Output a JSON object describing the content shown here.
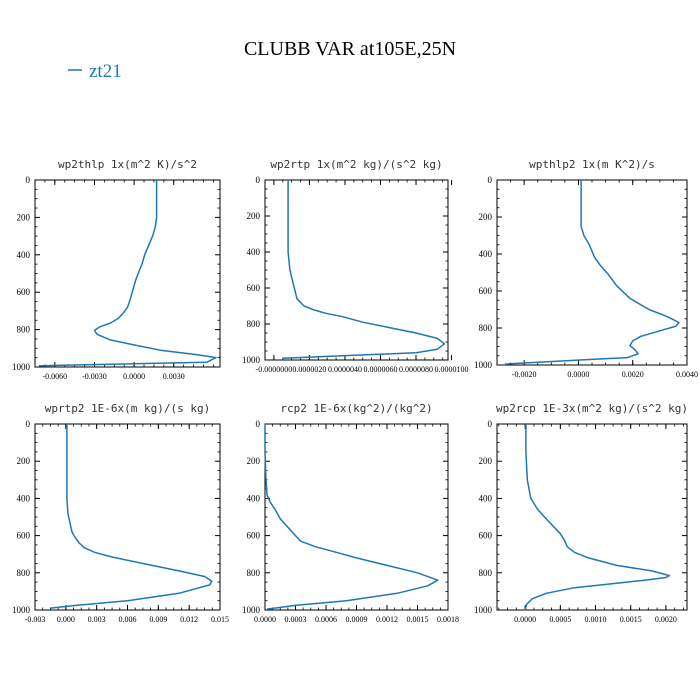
{
  "figure": {
    "title": "CLUBB VAR at105E,25N",
    "legend": {
      "label": "zt21",
      "color": "#1f77b4",
      "position": "top-left"
    }
  },
  "style": {
    "line_color": "#1f77b4",
    "axis_color": "#000000"
  },
  "chart_data": [
    {
      "type": "line",
      "title": "wp2thlp  1x(m^2 K)/s^2",
      "series": [
        {
          "name": "zt21",
          "x": [
            -0.0072,
            0.0055,
            0.0062,
            0.0048,
            0.002,
            0.0002,
            -0.0018,
            -0.0028,
            -0.003,
            -0.0026,
            -0.0018,
            -0.0012,
            -0.0008,
            -0.0005,
            -0.0003,
            -0.0001,
            0.0001,
            0.0003,
            0.0006,
            0.0008,
            0.0011,
            0.0014,
            0.0016,
            0.0017,
            0.0017,
            0.0017
          ],
          "y": [
            993,
            975,
            950,
            935,
            910,
            885,
            855,
            825,
            805,
            785,
            765,
            740,
            710,
            680,
            640,
            590,
            540,
            500,
            450,
            400,
            350,
            300,
            250,
            200,
            100,
            0
          ]
        }
      ],
      "xticks": [
        -0.006,
        -0.003,
        0,
        0.003
      ],
      "xticklabels": [
        "-0.0060",
        "-0.0030",
        "0.0000",
        "0.0030"
      ],
      "xlim": [
        -0.0075,
        0.0065
      ],
      "yticks": [
        0,
        200,
        400,
        600,
        800,
        1000
      ],
      "yticklabels": [
        "0",
        "200",
        "400",
        "600",
        "800",
        "1000"
      ],
      "ylim": [
        1000,
        0
      ]
    },
    {
      "type": "line",
      "title": "wp2rtp  1x(m^2 kg)/(s^2 kg)",
      "series": [
        {
          "name": "zt21",
          "x": [
            5e-07,
            3e-06,
            8e-06,
            9.2e-06,
            9.6e-06,
            9.2e-06,
            8e-06,
            6.5e-06,
            5e-06,
            3.9e-06,
            2.9e-06,
            2.2e-06,
            1.7e-06,
            1.3e-06,
            1.2e-06,
            1.1e-06,
            9e-07,
            8e-07,
            8e-07,
            8e-07
          ],
          "y": [
            990,
            980,
            960,
            940,
            910,
            880,
            850,
            820,
            790,
            760,
            740,
            720,
            700,
            660,
            620,
            580,
            500,
            400,
            200,
            0
          ]
        }
      ],
      "xticks": [
        0,
        2e-06,
        4e-06,
        6e-06,
        8e-06,
        1e-05
      ],
      "xticklabels": [
        "-0.0000000",
        "0.0000020",
        "0.0000040",
        "0.0000060",
        "0.0000080",
        "0.0000100"
      ],
      "xlim": [
        -5e-07,
        9.8e-06
      ],
      "yticks": [
        0,
        200,
        400,
        600,
        800,
        1000
      ],
      "yticklabels": [
        "0",
        "200",
        "400",
        "600",
        "800",
        "1000"
      ],
      "ylim": [
        1000,
        0
      ]
    },
    {
      "type": "line",
      "title": "wpthlp2  1x(m K^2)/s",
      "series": [
        {
          "name": "zt21",
          "x": [
            -0.0027,
            -0.0015,
            0.0005,
            0.0018,
            0.0022,
            0.0021,
            0.0019,
            0.002,
            0.0023,
            0.003,
            0.0036,
            0.0037,
            0.0033,
            0.0026,
            0.0019,
            0.0014,
            0.0011,
            0.0008,
            0.0006,
            0.0004,
            0.0002,
            0.0001,
            0.0001,
            0.0001
          ],
          "y": [
            995,
            985,
            970,
            960,
            940,
            920,
            895,
            870,
            845,
            815,
            790,
            770,
            740,
            700,
            640,
            570,
            510,
            460,
            420,
            350,
            300,
            250,
            150,
            0
          ]
        }
      ],
      "xticks": [
        -0.002,
        0,
        0.002,
        0.004
      ],
      "xticklabels": [
        "-0.0020",
        "0.0000",
        "0.0020",
        "0.0040"
      ],
      "xlim": [
        -0.003,
        0.004
      ],
      "yticks": [
        0,
        200,
        400,
        600,
        800,
        1000
      ],
      "yticklabels": [
        "0",
        "200",
        "400",
        "600",
        "800",
        "1000"
      ],
      "ylim": [
        1000,
        0
      ]
    },
    {
      "type": "line",
      "title": "wprtp2  1E-6x(m kg)/(s kg)",
      "series": [
        {
          "name": "zt21",
          "x": [
            -0.0015,
            0.001,
            0.006,
            0.011,
            0.014,
            0.0142,
            0.0135,
            0.011,
            0.0075,
            0.0045,
            0.0028,
            0.0018,
            0.0013,
            0.0009,
            0.0006,
            0.0004,
            0.0002,
            0.0001,
            0.0001,
            0.0001,
            0.0001
          ],
          "y": [
            990,
            975,
            950,
            910,
            865,
            845,
            820,
            790,
            750,
            715,
            690,
            665,
            640,
            610,
            580,
            530,
            480,
            400,
            300,
            150,
            0
          ]
        }
      ],
      "xticks": [
        -0.003,
        0,
        0.003,
        0.006,
        0.009,
        0.012,
        0.015
      ],
      "xticklabels": [
        "-0.003",
        "0.000",
        "0.003",
        "0.006",
        "0.009",
        "0.012",
        "0.015"
      ],
      "xlim": [
        -0.003,
        0.015
      ],
      "yticks": [
        0,
        200,
        400,
        600,
        800,
        1000
      ],
      "yticklabels": [
        "0",
        "200",
        "400",
        "600",
        "800",
        "1000"
      ],
      "ylim": [
        1000,
        0
      ]
    },
    {
      "type": "line",
      "title": "rcp2  1E-6x(kg^2)/(kg^2)",
      "series": [
        {
          "name": "zt21",
          "x": [
            2e-05,
            0.0003,
            0.0008,
            0.0013,
            0.0016,
            0.0017,
            0.0015,
            0.0012,
            0.0009,
            0.0007,
            0.0005,
            0.00035,
            0.00025,
            0.00015,
            0.0001,
            5e-05,
            2e-05,
            1e-05,
            0,
            0
          ],
          "y": [
            995,
            975,
            950,
            910,
            870,
            840,
            800,
            760,
            720,
            690,
            660,
            630,
            570,
            510,
            460,
            420,
            380,
            300,
            150,
            0
          ]
        }
      ],
      "xticks": [
        0,
        0.0003,
        0.0006,
        0.0009,
        0.0012,
        0.0015,
        0.0018
      ],
      "xticklabels": [
        "0.0000",
        "0.0003",
        "0.0006",
        "0.0009",
        "0.0012",
        "0.0015",
        "0.0018"
      ],
      "xlim": [
        0,
        0.0018
      ],
      "yticks": [
        0,
        200,
        400,
        600,
        800,
        1000
      ],
      "yticklabels": [
        "0",
        "200",
        "400",
        "600",
        "800",
        "1000"
      ],
      "ylim": [
        1000,
        0
      ]
    },
    {
      "type": "line",
      "title": "wp2rcp  1E-3x(m^2 kg)/(s^2 kg)",
      "series": [
        {
          "name": "zt21",
          "x": [
            0,
            2e-05,
            0.0001,
            0.0003,
            0.0007,
            0.0012,
            0.0017,
            0.002,
            0.00205,
            0.0018,
            0.0013,
            0.0009,
            0.0007,
            0.0006,
            0.00055,
            0.0005,
            0.0004,
            0.0003,
            0.00018,
            8e-05,
            3e-05,
            1e-05,
            1e-05
          ],
          "y": [
            1000,
            970,
            940,
            910,
            880,
            860,
            840,
            825,
            815,
            790,
            760,
            720,
            690,
            660,
            620,
            590,
            550,
            510,
            460,
            400,
            300,
            150,
            0
          ]
        }
      ],
      "xticks": [
        0,
        0.0005,
        0.001,
        0.0015,
        0.002
      ],
      "xticklabels": [
        "0.0000",
        "0.0005",
        "0.0010",
        "0.0015",
        "0.0020"
      ],
      "xlim": [
        -0.0004,
        0.0023
      ],
      "yticks": [
        0,
        200,
        400,
        600,
        800,
        1000
      ],
      "yticklabels": [
        "0",
        "200",
        "400",
        "600",
        "800",
        "1000"
      ],
      "ylim": [
        1000,
        0
      ]
    }
  ]
}
